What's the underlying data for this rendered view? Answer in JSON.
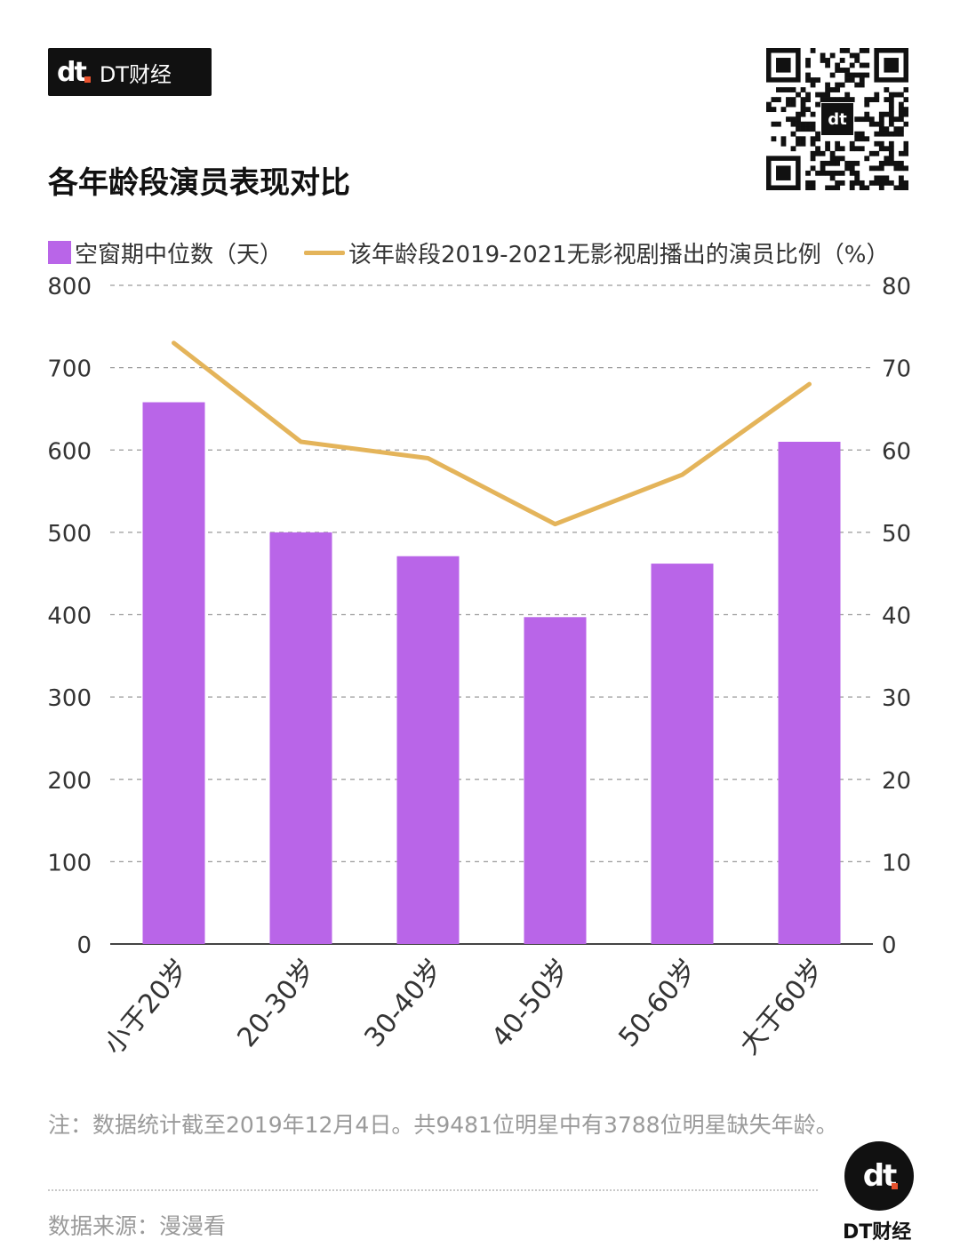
{
  "brand": {
    "mark": "dt",
    "name": "DT财经"
  },
  "qr_center": "dt",
  "title": "各年龄段演员表现对比",
  "note": "注：数据统计截至2019年12月4日。共9481位明星中有3788位明星缺失年龄。",
  "source": "数据来源：漫漫看",
  "footer_logo": {
    "mark": "dt",
    "name": "DT财经"
  },
  "colors": {
    "bar": "#b965e8",
    "line": "#e4b45a",
    "grid": "#9a9a9a"
  },
  "chart_data": {
    "type": "bar",
    "categories": [
      "小于20岁",
      "20-30岁",
      "30-40岁",
      "40-50岁",
      "50-60岁",
      "大于60岁"
    ],
    "series": [
      {
        "name": "空窗期中位数（天）",
        "type": "bar",
        "axis": "left",
        "values": [
          658,
          500,
          471,
          397,
          462,
          610
        ]
      },
      {
        "name": "该年龄段2019-2021无影视剧播出的演员比例（%）",
        "type": "line",
        "axis": "right",
        "values": [
          73,
          61,
          59,
          51,
          57,
          68
        ]
      }
    ],
    "y_left": {
      "min": 0,
      "max": 800,
      "ticks": [
        0,
        100,
        200,
        300,
        400,
        500,
        600,
        700,
        800
      ]
    },
    "y_right": {
      "min": 0,
      "max": 80,
      "ticks": [
        0,
        10,
        20,
        30,
        40,
        50,
        60,
        70,
        80
      ]
    },
    "grid": true,
    "legend_position": "top-left"
  }
}
